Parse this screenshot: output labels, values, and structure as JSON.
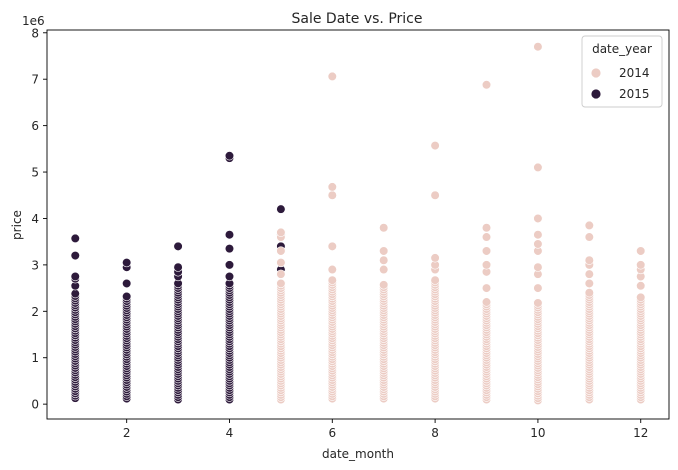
{
  "chart_data": {
    "type": "scatter",
    "title": "Sale Date vs. Price",
    "xlabel": "date_month",
    "ylabel": "price",
    "y_scale_label": "1e6",
    "xlim": [
      0.45,
      12.55
    ],
    "ylim": [
      -0.32,
      8.06
    ],
    "x_ticks": [
      2,
      4,
      6,
      8,
      10,
      12
    ],
    "y_ticks": [
      0,
      1,
      2,
      3,
      4,
      5,
      6,
      7,
      8
    ],
    "grid": false,
    "legend": {
      "title": "date_year",
      "placement": "top-right",
      "entries": [
        {
          "label": "2014",
          "color": "#ecccc4"
        },
        {
          "label": "2015",
          "color": "#2d1a3b"
        }
      ]
    },
    "series": [
      {
        "name": "2015",
        "color": "#2d1a3b",
        "points": [
          {
            "x": 1,
            "min": 0.13,
            "max": 2.4,
            "extras": [
              2.55,
              2.7,
              2.75,
              3.2,
              3.57
            ]
          },
          {
            "x": 2,
            "min": 0.12,
            "max": 2.35,
            "extras": [
              2.6,
              2.95,
              3.05
            ]
          },
          {
            "x": 3,
            "min": 0.1,
            "max": 2.6,
            "extras": [
              2.75,
              2.85,
              2.95,
              3.4
            ]
          },
          {
            "x": 4,
            "min": 0.1,
            "max": 2.6,
            "extras": [
              2.75,
              3.0,
              3.35,
              3.65,
              5.3,
              5.35
            ]
          },
          {
            "x": 5,
            "min": 0.45,
            "max": 1.2,
            "extras": [
              1.7,
              2.05,
              2.9,
              3.4,
              3.65,
              4.2
            ]
          }
        ]
      },
      {
        "name": "2014",
        "color": "#ecccc4",
        "points": [
          {
            "x": 5,
            "min": 0.1,
            "max": 2.6,
            "extras": [
              2.8,
              3.05,
              3.3,
              3.6,
              3.7
            ]
          },
          {
            "x": 6,
            "min": 0.12,
            "max": 2.7,
            "extras": [
              2.9,
              3.4,
              4.5,
              4.68,
              7.06
            ]
          },
          {
            "x": 7,
            "min": 0.12,
            "max": 2.6,
            "extras": [
              2.9,
              3.1,
              3.3,
              3.8
            ]
          },
          {
            "x": 8,
            "min": 0.12,
            "max": 2.7,
            "extras": [
              2.9,
              3.0,
              3.15,
              4.5,
              5.57
            ]
          },
          {
            "x": 9,
            "min": 0.1,
            "max": 2.2,
            "extras": [
              2.5,
              2.85,
              3.0,
              3.3,
              3.6,
              3.8,
              6.88
            ]
          },
          {
            "x": 10,
            "min": 0.08,
            "max": 2.2,
            "extras": [
              2.5,
              2.8,
              2.95,
              3.3,
              3.45,
              3.65,
              4.0,
              5.1,
              7.7
            ]
          },
          {
            "x": 11,
            "min": 0.1,
            "max": 2.4,
            "extras": [
              2.6,
              2.8,
              3.0,
              3.1,
              3.6,
              3.85
            ]
          },
          {
            "x": 12,
            "min": 0.1,
            "max": 2.3,
            "extras": [
              2.55,
              2.75,
              2.9,
              3.0,
              3.3
            ]
          }
        ]
      }
    ]
  }
}
